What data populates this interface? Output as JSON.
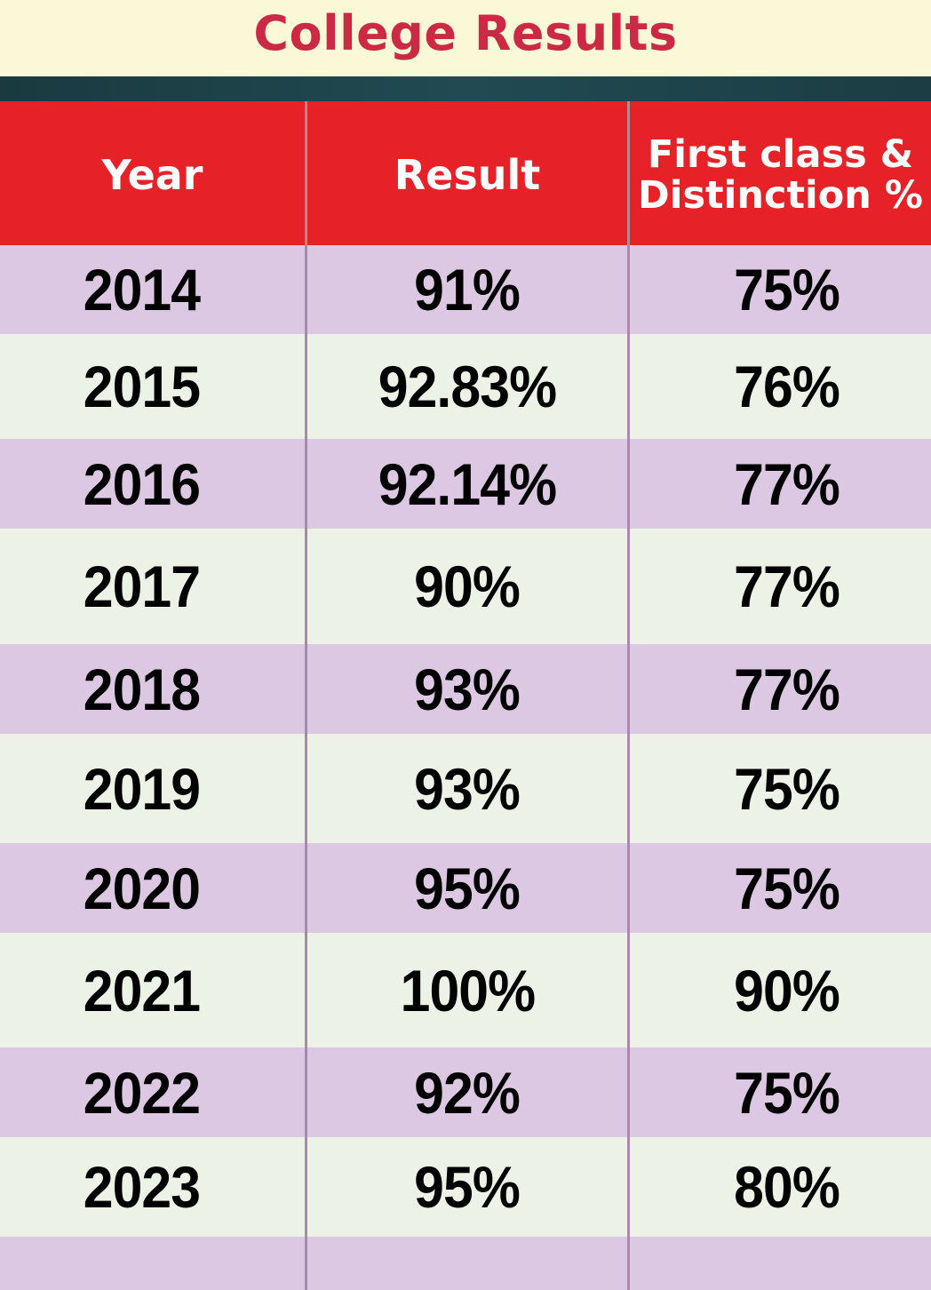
{
  "title": "College Results",
  "colors": {
    "title": "#cc2a44",
    "header_bg": "#e72128",
    "row_odd": "#dcc8e2",
    "row_even": "#ecf3e6",
    "title_band": "#fbf8d8"
  },
  "table": {
    "headers": {
      "year": "Year",
      "result": "Result",
      "first_class_line1": "First class &",
      "first_class_line2": "Distinction %"
    },
    "rows": [
      {
        "year": "2014",
        "result": "91%",
        "first_class": "75%"
      },
      {
        "year": "2015",
        "result": "92.83%",
        "first_class": "76%"
      },
      {
        "year": "2016",
        "result": "92.14%",
        "first_class": "77%"
      },
      {
        "year": "2017",
        "result": "90%",
        "first_class": "77%"
      },
      {
        "year": "2018",
        "result": "93%",
        "first_class": "77%"
      },
      {
        "year": "2019",
        "result": "93%",
        "first_class": "75%"
      },
      {
        "year": "2020",
        "result": "95%",
        "first_class": "75%"
      },
      {
        "year": "2021",
        "result": "100%",
        "first_class": "90%"
      },
      {
        "year": "2022",
        "result": "92%",
        "first_class": "75%"
      },
      {
        "year": "2023",
        "result": "95%",
        "first_class": "80%"
      }
    ]
  }
}
